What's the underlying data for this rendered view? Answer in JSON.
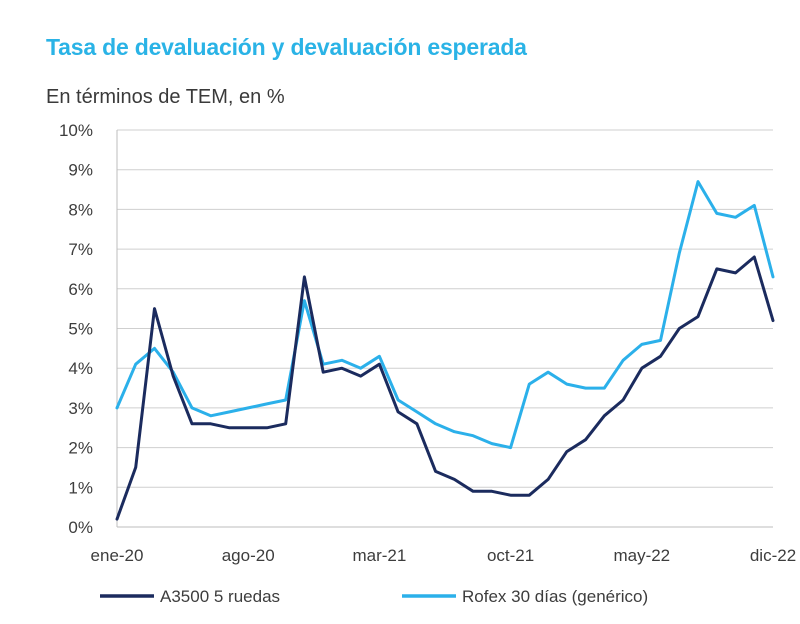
{
  "chart_data": {
    "type": "line",
    "title": "Tasa de devaluación y devaluación esperada",
    "subtitle": "En términos de TEM, en %",
    "xlabel": "",
    "ylabel": "",
    "ylim": [
      0,
      10
    ],
    "y_ticks": [
      "0%",
      "1%",
      "2%",
      "3%",
      "4%",
      "5%",
      "6%",
      "7%",
      "8%",
      "9%",
      "10%"
    ],
    "x_ticks": [
      "ene-20",
      "ago-20",
      "mar-21",
      "oct-21",
      "may-22",
      "dic-22"
    ],
    "grid": true,
    "legend_position": "bottom",
    "x": [
      "2020-01",
      "2020-02",
      "2020-03",
      "2020-04",
      "2020-05",
      "2020-06",
      "2020-07",
      "2020-08",
      "2020-09",
      "2020-10",
      "2020-11",
      "2020-12",
      "2021-01",
      "2021-02",
      "2021-03",
      "2021-04",
      "2021-05",
      "2021-06",
      "2021-07",
      "2021-08",
      "2021-09",
      "2021-10",
      "2021-11",
      "2021-12",
      "2022-01",
      "2022-02",
      "2022-03",
      "2022-04",
      "2022-05",
      "2022-06",
      "2022-07",
      "2022-08",
      "2022-09",
      "2022-10",
      "2022-11",
      "2022-12"
    ],
    "series": [
      {
        "name": "A3500 5 ruedas",
        "color": "#1b2b5e",
        "values": [
          0.2,
          1.5,
          5.5,
          3.8,
          2.6,
          2.6,
          2.5,
          2.5,
          2.5,
          2.6,
          6.3,
          3.9,
          4.0,
          3.8,
          4.1,
          2.9,
          2.6,
          1.4,
          1.2,
          0.9,
          0.9,
          0.8,
          0.8,
          1.2,
          1.9,
          2.2,
          2.8,
          3.2,
          4.0,
          4.3,
          5.0,
          5.3,
          6.5,
          6.4,
          6.8,
          5.2
        ]
      },
      {
        "name": "Rofex 30 días (genérico)",
        "color": "#2bb0ea",
        "values": [
          3.0,
          4.1,
          4.5,
          3.9,
          3.0,
          2.8,
          2.9,
          3.0,
          3.1,
          3.2,
          5.7,
          4.1,
          4.2,
          4.0,
          4.3,
          3.2,
          2.9,
          2.6,
          2.4,
          2.3,
          2.1,
          2.0,
          3.6,
          3.9,
          3.6,
          3.5,
          3.5,
          4.2,
          4.6,
          4.7,
          6.9,
          8.7,
          7.9,
          7.8,
          8.1,
          6.3
        ]
      }
    ]
  }
}
